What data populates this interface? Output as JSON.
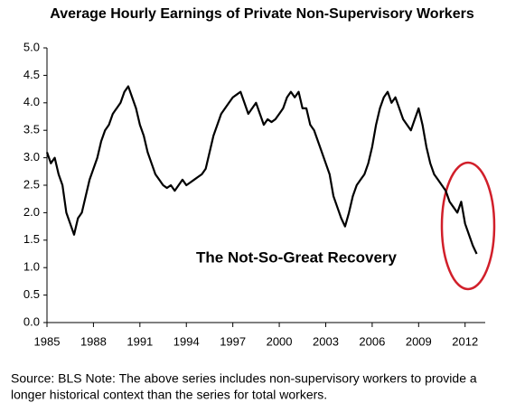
{
  "chart_data": {
    "type": "line",
    "title": "Average Hourly Earnings of Private Non-Supervisory Workers",
    "annotation": "The Not-So-Great Recovery",
    "annotation_color": "#d11f2a",
    "note_lines": [
      "Source: BLS   Note: The above series includes non-supervisory workers to provide a",
      "longer historical context than the series for total workers."
    ],
    "xlim": [
      1985,
      2013.3
    ],
    "xticks": [
      1985,
      1988,
      1991,
      1994,
      1997,
      2000,
      2003,
      2006,
      2009,
      2012
    ],
    "ylim": [
      0,
      5
    ],
    "yticks": [
      {
        "value": 0,
        "label": "0.0"
      },
      0.5,
      {
        "value": 1,
        "label": "1.0"
      },
      1.5,
      {
        "value": 2,
        "label": "2.0"
      },
      2.5,
      {
        "value": 3,
        "label": "3.0"
      },
      3.5,
      {
        "value": 4,
        "label": "4.0"
      },
      4.5,
      {
        "value": 5,
        "label": "5.0"
      }
    ],
    "grid": false,
    "series": [
      {
        "color": "#000000",
        "x": [
          1985,
          1985.25,
          1985.5,
          1985.75,
          1986,
          1986.25,
          1986.5,
          1986.75,
          1987,
          1987.25,
          1987.5,
          1987.75,
          1988,
          1988.25,
          1988.5,
          1988.75,
          1989,
          1989.25,
          1989.5,
          1989.75,
          1990,
          1990.25,
          1990.5,
          1990.75,
          1991,
          1991.25,
          1991.5,
          1991.75,
          1992,
          1992.25,
          1992.5,
          1992.75,
          1993,
          1993.25,
          1993.5,
          1993.75,
          1994,
          1994.25,
          1994.5,
          1994.75,
          1995,
          1995.25,
          1995.5,
          1995.75,
          1996,
          1996.25,
          1996.5,
          1996.75,
          1997,
          1997.25,
          1997.5,
          1997.75,
          1998,
          1998.25,
          1998.5,
          1998.75,
          1999,
          1999.25,
          1999.5,
          1999.75,
          2000,
          2000.25,
          2000.5,
          2000.75,
          2001,
          2001.25,
          2001.5,
          2001.75,
          2002,
          2002.25,
          2002.5,
          2002.75,
          2003,
          2003.25,
          2003.5,
          2003.75,
          2004,
          2004.25,
          2004.5,
          2004.75,
          2005,
          2005.25,
          2005.5,
          2005.75,
          2006,
          2006.25,
          2006.5,
          2006.75,
          2007,
          2007.25,
          2007.5,
          2007.75,
          2008,
          2008.25,
          2008.5,
          2008.75,
          2009,
          2009.25,
          2009.5,
          2009.75,
          2010,
          2010.25,
          2010.5,
          2010.75,
          2011,
          2011.25,
          2011.5,
          2011.75,
          2012,
          2012.25,
          2012.5,
          2012.75
        ],
        "values": [
          3.1,
          2.9,
          3.0,
          2.7,
          2.5,
          2.0,
          1.8,
          1.6,
          1.9,
          2.0,
          2.3,
          2.6,
          2.8,
          3.0,
          3.3,
          3.5,
          3.6,
          3.8,
          3.9,
          4.0,
          4.2,
          4.3,
          4.1,
          3.9,
          3.6,
          3.4,
          3.1,
          2.9,
          2.7,
          2.6,
          2.5,
          2.45,
          2.5,
          2.4,
          2.5,
          2.6,
          2.5,
          2.55,
          2.6,
          2.65,
          2.7,
          2.8,
          3.1,
          3.4,
          3.6,
          3.8,
          3.9,
          4.0,
          4.1,
          4.15,
          4.2,
          4.0,
          3.8,
          3.9,
          4.0,
          3.8,
          3.6,
          3.7,
          3.65,
          3.7,
          3.8,
          3.9,
          4.1,
          4.2,
          4.1,
          4.2,
          3.9,
          3.9,
          3.6,
          3.5,
          3.3,
          3.1,
          2.9,
          2.7,
          2.3,
          2.1,
          1.9,
          1.75,
          2.0,
          2.3,
          2.5,
          2.6,
          2.7,
          2.9,
          3.2,
          3.6,
          3.9,
          4.1,
          4.2,
          4.0,
          4.1,
          3.9,
          3.7,
          3.6,
          3.5,
          3.7,
          3.9,
          3.6,
          3.2,
          2.9,
          2.7,
          2.6,
          2.5,
          2.4,
          2.2,
          2.1,
          2.0,
          2.2,
          1.8,
          1.6,
          1.4,
          1.25
        ]
      }
    ]
  }
}
